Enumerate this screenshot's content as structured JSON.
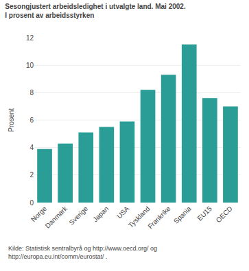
{
  "chart_data": {
    "type": "bar",
    "title": "Sesongjustert arbeidsledighet i utvalgte land. Mai 2002.",
    "subtitle": "I prosent av arbeidsstyrken",
    "ylabel": "Prosent",
    "annotations": [
      "Kilde: Statistisk sentralbyrå og http://www.oecd.org/ og\nhttp://europa.eu.int/comm/eurostat/ ."
    ],
    "categories": [
      "Norge",
      "Danmark",
      "Sverige",
      "Japan",
      "USA",
      "Tyskland",
      "Frankrike",
      "Spania",
      "EU15",
      "OECD"
    ],
    "values": [
      3.9,
      4.3,
      5.1,
      5.5,
      5.9,
      8.2,
      9.3,
      11.5,
      7.6,
      7.0
    ],
    "color": "#2a9d96",
    "ylim": [
      0,
      12
    ],
    "yticks": [
      0,
      2,
      4,
      6,
      8,
      10,
      12
    ],
    "grid": true
  }
}
